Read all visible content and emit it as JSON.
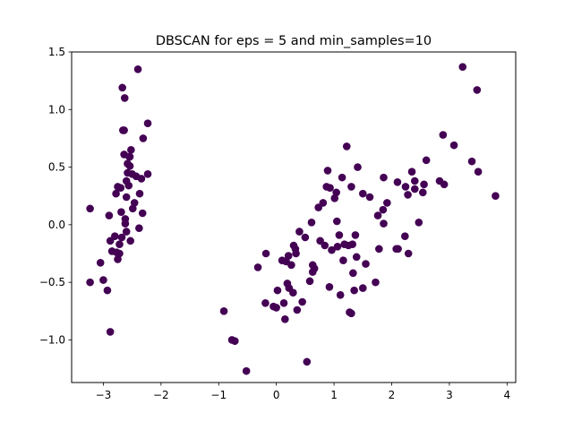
{
  "chart_data": {
    "type": "scatter",
    "title": "DBSCAN for eps = 5 and min_samples=10",
    "xlabel": "",
    "ylabel": "",
    "xlim": [
      -3.55,
      4.15
    ],
    "ylim": [
      -1.37,
      1.5
    ],
    "xticks": [
      -3,
      -2,
      -1,
      0,
      1,
      2,
      3,
      4
    ],
    "yticks": [
      -1.0,
      -0.5,
      0.0,
      0.5,
      1.0,
      1.5
    ],
    "xtick_labels": [
      "−3",
      "−2",
      "−1",
      "0",
      "1",
      "2",
      "3",
      "4"
    ],
    "ytick_labels": [
      "−1.0",
      "−0.5",
      "0.0",
      "0.5",
      "1.0",
      "1.5"
    ],
    "grid": false,
    "marker_color": "#440154",
    "series": [
      {
        "points": [
          [
            -3.23,
            0.14
          ],
          [
            -3.23,
            -0.5
          ],
          [
            -3.05,
            -0.33
          ],
          [
            -3.0,
            -0.48
          ],
          [
            -2.93,
            -0.57
          ],
          [
            -2.9,
            0.08
          ],
          [
            -2.88,
            -0.14
          ],
          [
            -2.88,
            -0.93
          ],
          [
            -2.85,
            -0.23
          ],
          [
            -2.8,
            -0.1
          ],
          [
            -2.78,
            0.27
          ],
          [
            -2.77,
            -0.24
          ],
          [
            -2.75,
            -0.3
          ],
          [
            -2.75,
            0.33
          ],
          [
            -2.72,
            -0.25
          ],
          [
            -2.72,
            -0.17
          ],
          [
            -2.7,
            0.32
          ],
          [
            -2.69,
            0.11
          ],
          [
            -2.68,
            -0.11
          ],
          [
            -2.67,
            1.19
          ],
          [
            -2.66,
            0.82
          ],
          [
            -2.64,
            0.61
          ],
          [
            -2.64,
            0.82
          ],
          [
            -2.63,
            1.1
          ],
          [
            -2.62,
            0.05
          ],
          [
            -2.62,
            0.01
          ],
          [
            -2.6,
            0.38
          ],
          [
            -2.6,
            -0.06
          ],
          [
            -2.6,
            0.24
          ],
          [
            -2.58,
            0.53
          ],
          [
            -2.58,
            0.45
          ],
          [
            -2.56,
            0.34
          ],
          [
            -2.55,
            0.59
          ],
          [
            -2.54,
            0.59
          ],
          [
            -2.54,
            0.51
          ],
          [
            -2.53,
            -0.14
          ],
          [
            -2.52,
            0.65
          ],
          [
            -2.5,
            0.44
          ],
          [
            -2.49,
            0.14
          ],
          [
            -2.46,
            0.19
          ],
          [
            -2.43,
            0.42
          ],
          [
            -2.4,
            1.35
          ],
          [
            -2.38,
            -0.03
          ],
          [
            -2.37,
            0.27
          ],
          [
            -2.34,
            0.4
          ],
          [
            -2.32,
            0.1
          ],
          [
            -2.31,
            0.75
          ],
          [
            -2.23,
            0.88
          ],
          [
            -2.23,
            0.44
          ],
          [
            -0.91,
            -0.75
          ],
          [
            -0.77,
            -1.0
          ],
          [
            -0.72,
            -1.01
          ],
          [
            -0.52,
            -1.27
          ],
          [
            -0.32,
            -0.37
          ],
          [
            -0.19,
            -0.68
          ],
          [
            -0.18,
            -0.25
          ],
          [
            -0.05,
            -0.71
          ],
          [
            0.0,
            -0.72
          ],
          [
            0.02,
            -0.57
          ],
          [
            0.1,
            -0.31
          ],
          [
            0.13,
            -0.68
          ],
          [
            0.15,
            -0.82
          ],
          [
            0.17,
            -0.32
          ],
          [
            0.19,
            -0.51
          ],
          [
            0.21,
            -0.27
          ],
          [
            0.22,
            -0.55
          ],
          [
            0.26,
            -0.35
          ],
          [
            0.29,
            -0.59
          ],
          [
            0.3,
            -0.18
          ],
          [
            0.33,
            -0.21
          ],
          [
            0.34,
            -0.25
          ],
          [
            0.36,
            -0.74
          ],
          [
            0.4,
            -0.06
          ],
          [
            0.45,
            -0.67
          ],
          [
            0.5,
            -0.11
          ],
          [
            0.53,
            -1.19
          ],
          [
            0.58,
            -0.49
          ],
          [
            0.61,
            0.02
          ],
          [
            0.63,
            -0.41
          ],
          [
            0.63,
            -0.35
          ],
          [
            0.66,
            -0.38
          ],
          [
            0.73,
            0.15
          ],
          [
            0.76,
            -0.14
          ],
          [
            0.81,
            0.19
          ],
          [
            0.84,
            -0.18
          ],
          [
            0.87,
            0.33
          ],
          [
            0.89,
            0.47
          ],
          [
            0.92,
            -0.54
          ],
          [
            0.93,
            0.32
          ],
          [
            0.96,
            -0.22
          ],
          [
            1.01,
            0.23
          ],
          [
            1.04,
            0.28
          ],
          [
            1.05,
            0.03
          ],
          [
            1.06,
            -0.19
          ],
          [
            1.09,
            -0.09
          ],
          [
            1.11,
            -0.61
          ],
          [
            1.14,
            0.41
          ],
          [
            1.16,
            -0.31
          ],
          [
            1.18,
            -0.17
          ],
          [
            1.22,
            0.68
          ],
          [
            1.25,
            -0.18
          ],
          [
            1.27,
            -0.76
          ],
          [
            1.3,
            -0.77
          ],
          [
            1.3,
            0.33
          ],
          [
            1.32,
            -0.17
          ],
          [
            1.33,
            -0.42
          ],
          [
            1.35,
            -0.57
          ],
          [
            1.37,
            -0.09
          ],
          [
            1.39,
            -0.28
          ],
          [
            1.41,
            0.5
          ],
          [
            1.5,
            -0.55
          ],
          [
            1.5,
            0.27
          ],
          [
            1.55,
            -0.34
          ],
          [
            1.62,
            0.24
          ],
          [
            1.72,
            -0.5
          ],
          [
            1.76,
            0.08
          ],
          [
            1.78,
            -0.21
          ],
          [
            1.85,
            0.13
          ],
          [
            1.86,
            0.41
          ],
          [
            1.86,
            0.01
          ],
          [
            1.92,
            0.19
          ],
          [
            2.08,
            -0.21
          ],
          [
            2.1,
            0.37
          ],
          [
            2.11,
            -0.21
          ],
          [
            2.23,
            -0.1
          ],
          [
            2.24,
            0.33
          ],
          [
            2.28,
            0.26
          ],
          [
            2.29,
            -0.25
          ],
          [
            2.35,
            0.46
          ],
          [
            2.4,
            0.38
          ],
          [
            2.4,
            0.31
          ],
          [
            2.47,
            0.02
          ],
          [
            2.54,
            0.28
          ],
          [
            2.56,
            0.35
          ],
          [
            2.6,
            0.56
          ],
          [
            2.83,
            0.38
          ],
          [
            2.89,
            0.78
          ],
          [
            2.91,
            0.35
          ],
          [
            3.08,
            0.69
          ],
          [
            3.23,
            1.37
          ],
          [
            3.39,
            0.55
          ],
          [
            3.48,
            1.17
          ],
          [
            3.5,
            0.46
          ],
          [
            3.8,
            0.25
          ]
        ]
      }
    ]
  }
}
